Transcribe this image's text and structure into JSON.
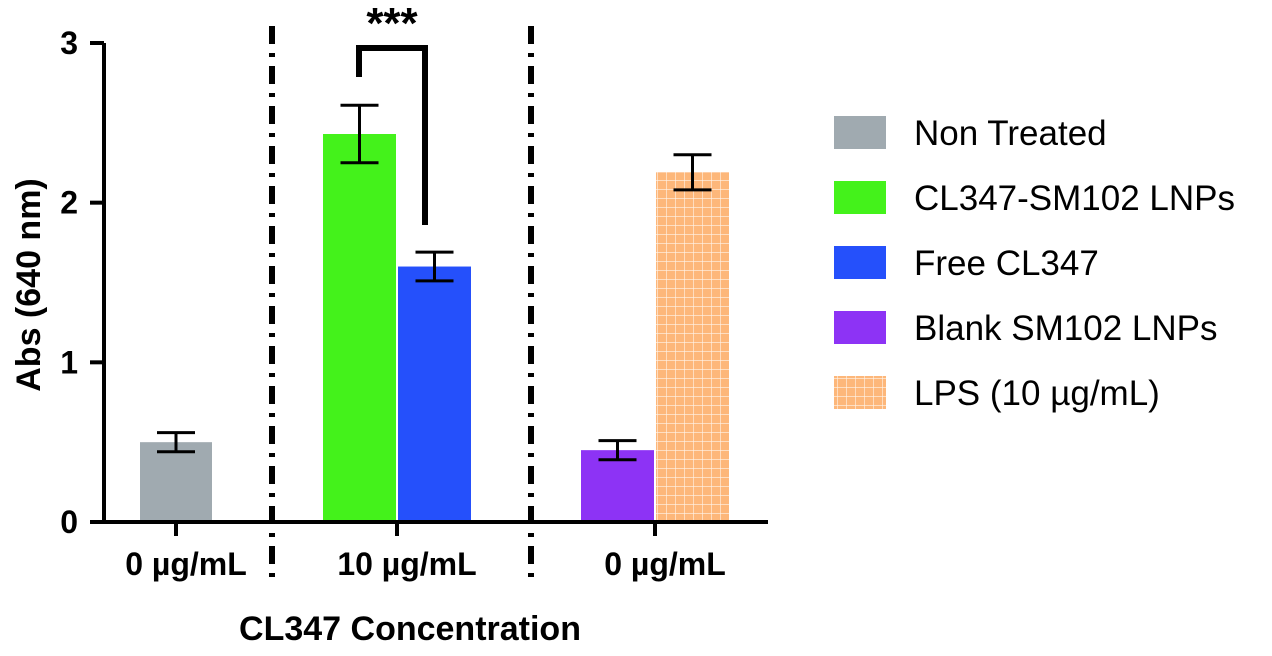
{
  "chart_data": {
    "type": "bar",
    "title": "",
    "ylabel": "Abs (640 nm)",
    "xlabel": "CL347 Concentration",
    "ylim": [
      0,
      3
    ],
    "yticks": [
      0,
      1,
      2,
      3
    ],
    "groups": [
      {
        "label": "0  µg/mL",
        "series": [
          "Non Treated"
        ]
      },
      {
        "label": "10  µg/mL",
        "series": [
          "CL347-SM102 LNPs",
          "Free CL347"
        ]
      },
      {
        "label": "0  µg/mL",
        "series": [
          "Blank SM102 LNPs",
          "LPS (10 µg/mL)"
        ]
      }
    ],
    "series": [
      {
        "name": "Non Treated",
        "color": "#a0aab0",
        "pattern": "solid",
        "group": 0,
        "value": 0.5,
        "error": 0.06
      },
      {
        "name": "CL347-SM102 LNPs",
        "color": "#44f21b",
        "pattern": "solid",
        "group": 1,
        "value": 2.43,
        "error": 0.18
      },
      {
        "name": "Free CL347",
        "color": "#2550fb",
        "pattern": "solid",
        "group": 1,
        "value": 1.6,
        "error": 0.09
      },
      {
        "name": "Blank SM102 LNPs",
        "color": "#8d33f5",
        "pattern": "solid",
        "group": 2,
        "value": 0.45,
        "error": 0.06
      },
      {
        "name": "LPS (10 µg/mL)",
        "color": "#fdb77a",
        "pattern": "grid",
        "group": 2,
        "value": 2.19,
        "error": 0.11
      }
    ],
    "significance": {
      "between": [
        "CL347-SM102 LNPs",
        "Free CL347"
      ],
      "label": "***"
    },
    "group_separators": "dash-dot vertical lines",
    "legend_position": "right"
  }
}
